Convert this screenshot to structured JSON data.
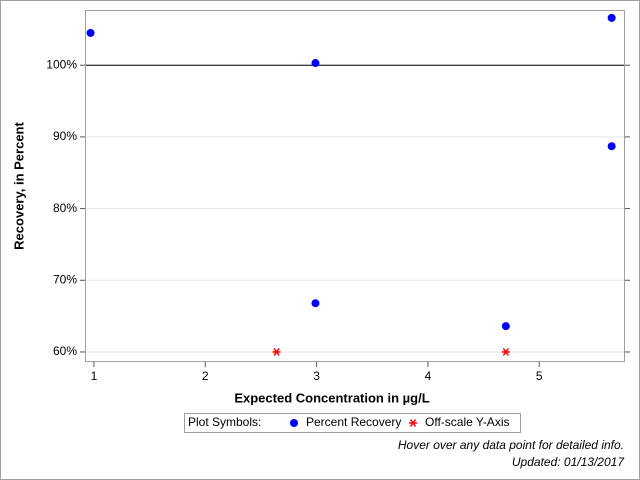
{
  "chart_data": {
    "type": "scatter",
    "xlabel": "Expected Concentration in µg/L",
    "ylabel": "Recovery, in Percent",
    "xlim": [
      0.92,
      5.77
    ],
    "xticks": [
      1,
      2,
      3,
      4,
      5
    ],
    "ylim": [
      58.6,
      107.7
    ],
    "yticks": [
      {
        "value": 60,
        "label": "60%"
      },
      {
        "value": 70,
        "label": "70%"
      },
      {
        "value": 80,
        "label": "80%"
      },
      {
        "value": 90,
        "label": "90%"
      },
      {
        "value": 100,
        "label": "100%"
      }
    ],
    "grid": true,
    "refline": 100,
    "legend_title": "Plot Symbols:",
    "series": [
      {
        "name": "Percent Recovery",
        "color": "#0000ff",
        "marker": "dot",
        "x": [
          0.97,
          2.99,
          2.99,
          4.7,
          5.65,
          5.65
        ],
        "values": [
          104.5,
          100.3,
          66.8,
          63.6,
          106.6,
          88.7
        ]
      },
      {
        "name": "Off-scale Y-Axis",
        "color": "#ff0000",
        "marker": "star",
        "x": [
          2.64,
          4.7
        ],
        "values": [
          60,
          60
        ]
      }
    ],
    "notes": [
      "Hover over any data point for detailed info.",
      "Updated: 01/13/2017"
    ]
  }
}
